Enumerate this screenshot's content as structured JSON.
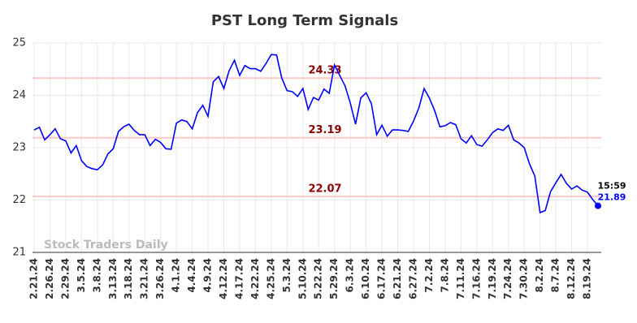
{
  "chart_data": {
    "type": "line",
    "title": "PST Long Term Signals",
    "watermark": "Stock Traders Daily",
    "categories": [
      "2.21.24",
      null,
      null,
      "2.26.24",
      null,
      null,
      "2.29.24",
      null,
      null,
      "3.5.24",
      null,
      null,
      "3.8.24",
      null,
      null,
      "3.13.24",
      null,
      null,
      "3.18.24",
      null,
      null,
      "3.21.24",
      null,
      null,
      "3.26.24",
      null,
      null,
      "4.1.24",
      null,
      null,
      "4.4.24",
      null,
      null,
      "4.9.24",
      null,
      null,
      "4.12.24",
      null,
      null,
      "4.17.24",
      null,
      null,
      "4.22.24",
      null,
      null,
      "4.25.24",
      null,
      null,
      "5.3.24",
      null,
      null,
      "5.10.24",
      null,
      null,
      "5.22.24",
      null,
      null,
      "5.29.24",
      null,
      null,
      "6.3.24",
      null,
      null,
      "6.10.24",
      null,
      null,
      "6.17.24",
      null,
      null,
      "6.21.24",
      null,
      null,
      "6.27.24",
      null,
      null,
      "7.2.24",
      null,
      null,
      "7.8.24",
      null,
      null,
      "7.11.24",
      null,
      null,
      "7.16.24",
      null,
      null,
      "7.19.24",
      null,
      null,
      "7.24.24",
      null,
      null,
      "7.30.24",
      null,
      null,
      "8.2.24",
      null,
      null,
      "8.7.24",
      null,
      null,
      "8.12.24",
      null,
      null,
      "8.19.24",
      null,
      null
    ],
    "values": [
      23.34,
      23.39,
      23.15,
      23.25,
      23.36,
      23.17,
      23.13,
      22.9,
      23.04,
      22.75,
      22.64,
      22.6,
      22.58,
      22.67,
      22.88,
      22.98,
      23.31,
      23.4,
      23.45,
      23.33,
      23.25,
      23.25,
      23.04,
      23.16,
      23.1,
      22.98,
      22.97,
      23.47,
      23.53,
      23.5,
      23.36,
      23.67,
      23.81,
      23.6,
      24.26,
      24.36,
      24.13,
      24.47,
      24.67,
      24.38,
      24.57,
      24.51,
      24.51,
      24.46,
      24.61,
      24.78,
      24.77,
      24.33,
      24.09,
      24.07,
      23.98,
      24.13,
      23.73,
      23.96,
      23.91,
      24.12,
      24.04,
      24.58,
      24.38,
      24.18,
      23.85,
      23.45,
      23.95,
      24.05,
      23.84,
      23.25,
      23.43,
      23.22,
      23.34,
      23.34,
      23.33,
      23.31,
      23.51,
      23.76,
      24.13,
      23.95,
      23.71,
      23.4,
      23.42,
      23.48,
      23.44,
      23.17,
      23.09,
      23.23,
      23.06,
      23.03,
      23.15,
      23.29,
      23.36,
      23.33,
      23.43,
      23.15,
      23.09,
      23.0,
      22.69,
      22.46,
      21.76,
      21.8,
      22.16,
      22.33,
      22.49,
      22.32,
      22.21,
      22.27,
      22.19,
      22.15,
      22.01,
      21.89
    ],
    "color": "#0000ff",
    "ylim": [
      21,
      25
    ],
    "yticks": [
      21,
      22,
      23,
      24,
      25
    ],
    "grid": true,
    "levels": [
      24.33,
      23.19,
      22.07
    ],
    "level_color": "#ffc8c8",
    "level_label_color": "#8b0000",
    "last_time": "15:59"
  }
}
